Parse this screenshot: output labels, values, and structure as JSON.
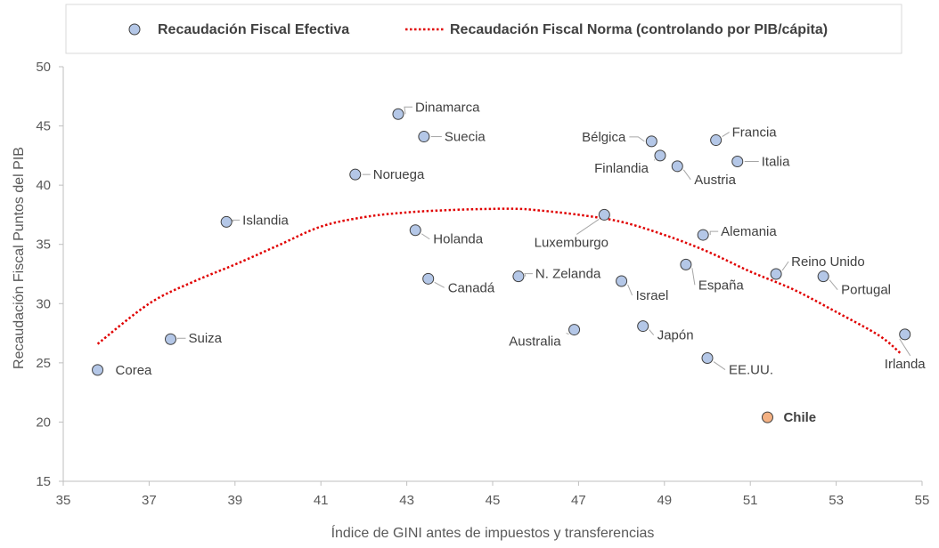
{
  "chart_data": {
    "type": "scatter",
    "xlabel": "Índice de GINI antes de impuestos y transferencias",
    "ylabel": "Recaudación Fiscal  Puntos del PIB",
    "xlim": [
      35,
      55
    ],
    "ylim": [
      15,
      50
    ],
    "x_ticks": [
      35,
      37,
      39,
      41,
      43,
      45,
      47,
      49,
      51,
      53,
      55
    ],
    "y_ticks": [
      15,
      20,
      25,
      30,
      35,
      40,
      45,
      50
    ],
    "grid": false,
    "legend_position": "top",
    "legend": {
      "scatter_label": "Recaudación Fiscal Efectiva",
      "curve_label": "Recaudación Fiscal Norma (controlando por PIB/cápita)"
    },
    "colors": {
      "marker_fill": "#b4c7e7",
      "highlight_fill": "#f4b183",
      "curve": "#e00000"
    },
    "series": [
      {
        "name": "Recaudación Fiscal Efectiva",
        "points": [
          {
            "label": "Corea",
            "x": 35.8,
            "y": 24.4
          },
          {
            "label": "Suiza",
            "x": 37.5,
            "y": 27.0
          },
          {
            "label": "Islandia",
            "x": 38.8,
            "y": 36.9
          },
          {
            "label": "Noruega",
            "x": 41.8,
            "y": 40.9
          },
          {
            "label": "Dinamarca",
            "x": 42.8,
            "y": 46.0
          },
          {
            "label": "Suecia",
            "x": 43.4,
            "y": 44.1
          },
          {
            "label": "Holanda",
            "x": 43.2,
            "y": 36.2
          },
          {
            "label": "Canadá",
            "x": 43.5,
            "y": 32.1
          },
          {
            "label": "N. Zelanda",
            "x": 45.6,
            "y": 32.3
          },
          {
            "label": "Australia",
            "x": 46.9,
            "y": 27.8
          },
          {
            "label": "Luxemburgo",
            "x": 47.6,
            "y": 37.5
          },
          {
            "label": "Israel",
            "x": 48.0,
            "y": 31.9
          },
          {
            "label": "Japón",
            "x": 48.5,
            "y": 28.1
          },
          {
            "label": "Bélgica",
            "x": 48.7,
            "y": 43.7
          },
          {
            "label": "Finlandia",
            "x": 48.9,
            "y": 42.5
          },
          {
            "label": "Austria",
            "x": 49.3,
            "y": 41.6
          },
          {
            "label": "España",
            "x": 49.5,
            "y": 33.3
          },
          {
            "label": "Francia",
            "x": 50.2,
            "y": 43.8
          },
          {
            "label": "Alemania",
            "x": 49.9,
            "y": 35.8
          },
          {
            "label": "EE.UU.",
            "x": 50.0,
            "y": 25.4
          },
          {
            "label": "Italia",
            "x": 50.7,
            "y": 42.0
          },
          {
            "label": "Chile",
            "x": 51.4,
            "y": 20.4,
            "highlight": true
          },
          {
            "label": "Reino Unido",
            "x": 51.6,
            "y": 32.5
          },
          {
            "label": "Portugal",
            "x": 52.7,
            "y": 32.3
          },
          {
            "label": "Irlanda",
            "x": 54.6,
            "y": 27.4
          }
        ]
      },
      {
        "name": "Recaudación Fiscal Norma (controlando por PIB/cápita)",
        "type": "line",
        "style": "dotted",
        "x": [
          35.8,
          37,
          38,
          39,
          40,
          41,
          42,
          43,
          44,
          45,
          45.6,
          46,
          47,
          48,
          49,
          50,
          51,
          52,
          53,
          54,
          54.5
        ],
        "y": [
          26.6,
          30.0,
          31.8,
          33.3,
          34.9,
          36.5,
          37.3,
          37.7,
          37.9,
          38.0,
          38.0,
          37.9,
          37.5,
          36.9,
          35.8,
          34.4,
          32.7,
          31.2,
          29.3,
          27.3,
          25.8
        ]
      }
    ]
  }
}
